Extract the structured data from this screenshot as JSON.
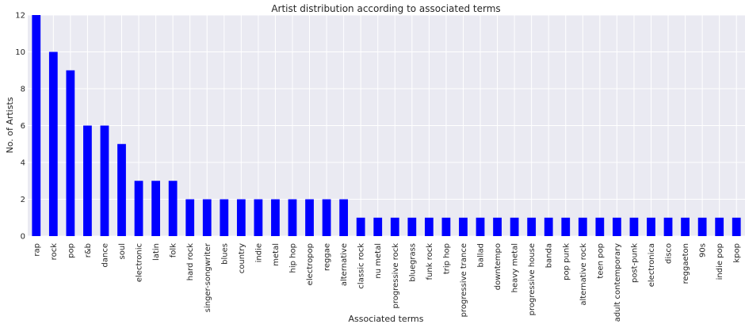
{
  "chart_data": {
    "type": "bar",
    "title": "Artist distribution according to associated terms",
    "xlabel": "Associated terms",
    "ylabel": "No. of Artists",
    "ylim": [
      0,
      12
    ],
    "yticks": [
      0,
      2,
      4,
      6,
      8,
      10,
      12
    ],
    "grid": true,
    "bar_color": "#0000ff",
    "background_color": "#eaeaf2",
    "categories": [
      "rap",
      "rock",
      "pop",
      "r&b",
      "dance",
      "soul",
      "electronic",
      "latin",
      "folk",
      "hard rock",
      "singer-songwriter",
      "blues",
      "country",
      "indie",
      "metal",
      "hip hop",
      "electropop",
      "reggae",
      "alternative",
      "classic rock",
      "nu metal",
      "progressive rock",
      "bluegrass",
      "funk rock",
      "trip hop",
      "progressive trance",
      "ballad",
      "downtempo",
      "heavy metal",
      "progressive house",
      "banda",
      "pop punk",
      "alternative rock",
      "teen pop",
      "adult contemporary",
      "post-punk",
      "electronica",
      "disco",
      "reggaeton",
      "90s",
      "indie pop",
      "kpop"
    ],
    "values": [
      12,
      10,
      9,
      6,
      6,
      5,
      3,
      3,
      3,
      2,
      2,
      2,
      2,
      2,
      2,
      2,
      2,
      2,
      2,
      1,
      1,
      1,
      1,
      1,
      1,
      1,
      1,
      1,
      1,
      1,
      1,
      1,
      1,
      1,
      1,
      1,
      1,
      1,
      1,
      1,
      1,
      1
    ]
  }
}
